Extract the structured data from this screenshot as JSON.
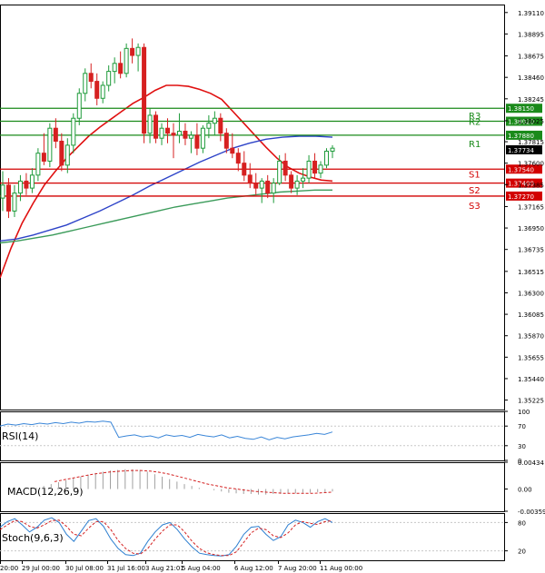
{
  "colors": {
    "background": "#ffffff",
    "axis": "#000000",
    "grid": "#c8c8c8",
    "bull": "#1e9b3a",
    "bear": "#d62020",
    "ma_fast": "#e01010",
    "ma_mid": "#2d43c8",
    "ma_slow": "#3b9b5a",
    "resistance": "#1a8a1a",
    "support": "#d20000",
    "rsi_line": "#3a86d8",
    "macd_hist": "#a0a0a0",
    "macd_signal": "#d42020",
    "stoch_main": "#2d7fd0",
    "stoch_signal": "#d42020"
  },
  "chart_data": [
    {
      "type": "candlestick",
      "panel": "price",
      "ylim": [
        1.3513,
        1.3919
      ],
      "y_ticks": [
        "1.39110",
        "1.38895",
        "1.38675",
        "1.38460",
        "1.38245",
        "1.38025",
        "1.37815",
        "1.37600",
        "1.37385",
        "1.37165",
        "1.36950",
        "1.36735",
        "1.36515",
        "1.36300",
        "1.36085",
        "1.35870",
        "1.35655",
        "1.35440",
        "1.35225"
      ],
      "x_ticks": [
        "20:00",
        "29 Jul 00:00",
        "30 Jul 08:00",
        "31 Jul 16:00",
        "3 Aug 21:01",
        "5 Aug 04:00",
        "6 Aug 12:00",
        "7 Aug 20:00",
        "11 Aug 00:00"
      ],
      "candles": [
        [
          1.3725,
          1.3752,
          1.3712,
          1.3738
        ],
        [
          1.3738,
          1.3745,
          1.3705,
          1.3712
        ],
        [
          1.3712,
          1.3738,
          1.3706,
          1.373
        ],
        [
          1.373,
          1.3748,
          1.3722,
          1.3742
        ],
        [
          1.3742,
          1.375,
          1.3728,
          1.3735
        ],
        [
          1.3735,
          1.3755,
          1.373,
          1.3748
        ],
        [
          1.3748,
          1.3775,
          1.3742,
          1.377
        ],
        [
          1.377,
          1.379,
          1.3758,
          1.3762
        ],
        [
          1.3762,
          1.38,
          1.3756,
          1.3795
        ],
        [
          1.3795,
          1.3805,
          1.3775,
          1.3782
        ],
        [
          1.3782,
          1.379,
          1.3752,
          1.3758
        ],
        [
          1.3758,
          1.3785,
          1.375,
          1.3778
        ],
        [
          1.3778,
          1.381,
          1.377,
          1.3805
        ],
        [
          1.3805,
          1.3835,
          1.3798,
          1.383
        ],
        [
          1.383,
          1.3855,
          1.3822,
          1.385
        ],
        [
          1.385,
          1.386,
          1.3835,
          1.3842
        ],
        [
          1.3842,
          1.385,
          1.3818,
          1.3825
        ],
        [
          1.3825,
          1.3842,
          1.382,
          1.3838
        ],
        [
          1.3838,
          1.3858,
          1.3832,
          1.3852
        ],
        [
          1.3852,
          1.3866,
          1.384,
          1.386
        ],
        [
          1.386,
          1.3872,
          1.3845,
          1.385
        ],
        [
          1.385,
          1.388,
          1.3846,
          1.3875
        ],
        [
          1.3875,
          1.3885,
          1.386,
          1.3868
        ],
        [
          1.3868,
          1.388,
          1.3852,
          1.3876
        ],
        [
          1.3876,
          1.388,
          1.378,
          1.379
        ],
        [
          1.379,
          1.3815,
          1.378,
          1.3808
        ],
        [
          1.3808,
          1.3812,
          1.378,
          1.3785
        ],
        [
          1.3785,
          1.38,
          1.3778,
          1.3795
        ],
        [
          1.3795,
          1.3805,
          1.378,
          1.379
        ],
        [
          1.379,
          1.38,
          1.3765,
          1.3788
        ],
        [
          1.3788,
          1.381,
          1.378,
          1.3792
        ],
        [
          1.3792,
          1.38,
          1.3778,
          1.3785
        ],
        [
          1.3785,
          1.3792,
          1.377,
          1.3788
        ],
        [
          1.3788,
          1.38,
          1.3768,
          1.3775
        ],
        [
          1.3775,
          1.3798,
          1.377,
          1.3795
        ],
        [
          1.3795,
          1.3808,
          1.3785,
          1.38
        ],
        [
          1.38,
          1.3812,
          1.3788,
          1.3805
        ],
        [
          1.3805,
          1.381,
          1.3782,
          1.379
        ],
        [
          1.379,
          1.3795,
          1.377,
          1.3775
        ],
        [
          1.3775,
          1.379,
          1.3765,
          1.377
        ],
        [
          1.377,
          1.3775,
          1.3752,
          1.376
        ],
        [
          1.376,
          1.3772,
          1.3742,
          1.3748
        ],
        [
          1.3748,
          1.376,
          1.3735,
          1.374
        ],
        [
          1.374,
          1.375,
          1.3728,
          1.3735
        ],
        [
          1.3735,
          1.3745,
          1.372,
          1.3742
        ],
        [
          1.3742,
          1.3748,
          1.3725,
          1.373
        ],
        [
          1.373,
          1.3745,
          1.372,
          1.374
        ],
        [
          1.374,
          1.3768,
          1.3738,
          1.3762
        ],
        [
          1.3762,
          1.377,
          1.3742,
          1.3748
        ],
        [
          1.3748,
          1.3752,
          1.373,
          1.3735
        ],
        [
          1.3735,
          1.3748,
          1.3728,
          1.3742
        ],
        [
          1.3742,
          1.3755,
          1.3735,
          1.3745
        ],
        [
          1.3745,
          1.3768,
          1.374,
          1.3762
        ],
        [
          1.3762,
          1.377,
          1.3745,
          1.375
        ],
        [
          1.375,
          1.3762,
          1.3745,
          1.3758
        ],
        [
          1.3758,
          1.3775,
          1.3755,
          1.3772
        ],
        [
          1.3772,
          1.3778,
          1.3765,
          1.3775
        ]
      ],
      "series": [
        {
          "name": "",
          "role": "ma_fast",
          "values": [
            1.3645,
            1.3675,
            1.37,
            1.372,
            1.3738,
            1.3752,
            1.3765,
            1.3776,
            1.3787,
            1.3796,
            1.3804,
            1.3812,
            1.382,
            1.3826,
            1.3833,
            1.3838,
            1.3838,
            1.3837,
            1.3834,
            1.383,
            1.3824,
            1.3812,
            1.38,
            1.3788,
            1.3776,
            1.3765,
            1.3756,
            1.375,
            1.3746,
            1.3743,
            1.3742
          ]
        },
        {
          "name": "",
          "role": "ma_mid",
          "values": [
            1.3682,
            1.3684,
            1.3688,
            1.3693,
            1.3698,
            1.3705,
            1.3712,
            1.372,
            1.3728,
            1.3737,
            1.3745,
            1.3753,
            1.3761,
            1.3768,
            1.3775,
            1.378,
            1.3784,
            1.3786,
            1.3787,
            1.3787,
            1.3786
          ]
        },
        {
          "name": "",
          "role": "ma_slow",
          "values": [
            1.368,
            1.3682,
            1.3685,
            1.3688,
            1.3692,
            1.3696,
            1.37,
            1.3704,
            1.3708,
            1.3712,
            1.3716,
            1.3719,
            1.3722,
            1.3725,
            1.3727,
            1.3729,
            1.3731,
            1.3732,
            1.3733,
            1.3733
          ]
        }
      ],
      "levels": [
        {
          "label": "R3",
          "value": 1.3815,
          "price_label": "1.38150",
          "kind": "resistance"
        },
        {
          "label": "R2",
          "value": 1.3802,
          "price_label": "1.38020",
          "kind": "resistance"
        },
        {
          "label": "R1",
          "value": 1.3788,
          "price_label": "1.37880",
          "kind": "resistance"
        },
        {
          "label": "",
          "value": 1.3754,
          "price_label": "1.37540",
          "kind": "support"
        },
        {
          "label": "S1",
          "value": 1.374,
          "price_label": "1.37400",
          "kind": "support"
        },
        {
          "label": "S2",
          "value": 1.3727,
          "price_label": "1.37270",
          "kind": "support"
        },
        {
          "label": "S3",
          "value": null,
          "price_label": "",
          "kind": "support"
        }
      ],
      "current_price": {
        "value": 1.37734,
        "label": "1.37734"
      }
    },
    {
      "type": "line",
      "panel": "rsi",
      "title": "RSI(14)",
      "ylim": [
        0,
        100
      ],
      "y_ticks": [
        "100",
        "70",
        "30",
        "0"
      ],
      "series": [
        {
          "name": "",
          "values": [
            70,
            74,
            72,
            75,
            73,
            76,
            74,
            77,
            75,
            78,
            76,
            79,
            78,
            80,
            78,
            47,
            50,
            52,
            48,
            50,
            46,
            52,
            49,
            51,
            47,
            53,
            50,
            48,
            52,
            46,
            49,
            45,
            43,
            48,
            42,
            47,
            44,
            48,
            50,
            52,
            55,
            53,
            58
          ]
        }
      ]
    },
    {
      "type": "bar",
      "panel": "macd",
      "title": "MACD(12,26,9)",
      "ylim": [
        -0.003597,
        0.00434
      ],
      "y_ticks": [
        "0.00434",
        "0.00",
        "-0.003597"
      ],
      "histogram": [
        0.0002,
        0.0005,
        0.0008,
        0.0011,
        0.0014,
        0.0017,
        0.002,
        0.0023,
        0.0026,
        0.0028,
        0.003,
        0.0031,
        0.0032,
        0.0032,
        0.0031,
        0.0028,
        0.0024,
        0.002,
        0.0016,
        0.0012,
        0.0008,
        0.0005,
        0.0002,
        0.0,
        -0.0002,
        -0.0004,
        -0.0006,
        -0.0007,
        -0.0008,
        -0.0008,
        -0.0009,
        -0.0009,
        -0.0008,
        -0.0008,
        -0.0007,
        -0.0007,
        -0.0006,
        -0.0006,
        -0.0005,
        -0.0005,
        -0.0004
      ],
      "series": [
        {
          "name": "",
          "values": [
            0.0012,
            0.0015,
            0.0018,
            0.0021,
            0.0024,
            0.0026,
            0.0028,
            0.0029,
            0.003,
            0.003,
            0.0029,
            0.0027,
            0.0024,
            0.002,
            0.0016,
            0.0012,
            0.0008,
            0.0005,
            0.0002,
            0.0,
            -0.0002,
            -0.0004,
            -0.0005,
            -0.0006,
            -0.0007,
            -0.0007,
            -0.0007,
            -0.0007,
            -0.0006,
            -0.0005
          ]
        }
      ]
    },
    {
      "type": "line",
      "panel": "stoch",
      "title": "Stoch(9,6,3)",
      "ylim": [
        0,
        100
      ],
      "y_ticks": [
        "80",
        "20"
      ],
      "series": [
        {
          "name": "",
          "role": "main",
          "values": [
            70,
            82,
            88,
            75,
            60,
            70,
            85,
            90,
            80,
            55,
            40,
            62,
            84,
            88,
            72,
            45,
            25,
            12,
            10,
            15,
            40,
            60,
            75,
            80,
            65,
            45,
            28,
            15,
            12,
            10,
            9,
            12,
            30,
            55,
            70,
            72,
            55,
            42,
            50,
            75,
            85,
            80,
            70,
            82,
            88,
            80
          ]
        },
        {
          "name": "",
          "role": "signal",
          "values": [
            65,
            75,
            84,
            82,
            72,
            68,
            75,
            84,
            85,
            72,
            55,
            52,
            68,
            82,
            82,
            65,
            42,
            25,
            15,
            13,
            25,
            45,
            62,
            75,
            75,
            60,
            40,
            25,
            16,
            12,
            10,
            10,
            18,
            38,
            58,
            68,
            65,
            52,
            48,
            58,
            75,
            82,
            78,
            76,
            82,
            84
          ]
        }
      ]
    }
  ]
}
